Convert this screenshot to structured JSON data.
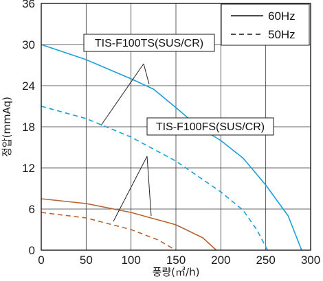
{
  "chart_data": {
    "type": "line",
    "xlabel": "풍량(㎥/h)",
    "ylabel": "정압(mmAq)",
    "xlim": [
      0,
      300
    ],
    "ylim": [
      0,
      36
    ],
    "x_ticks": [
      "0",
      "50",
      "100",
      "150",
      "200",
      "250",
      "300"
    ],
    "y_ticks": [
      "0",
      "6",
      "12",
      "18",
      "24",
      "30",
      "36"
    ],
    "grid": true,
    "legend": {
      "placement": "top-right",
      "entries": [
        {
          "label": "60Hz",
          "style": "solid"
        },
        {
          "label": "50Hz",
          "style": "dashed"
        }
      ]
    },
    "annotations": [
      {
        "text": "TIS-F100TS(SUS/CR)",
        "points_to": [
          "TIS-F100TS 60Hz",
          "TIS-F100TS 50Hz"
        ]
      },
      {
        "text": "TIS-F100FS(SUS/CR)",
        "points_to": [
          "TIS-F100FS 60Hz",
          "TIS-F100FS 50Hz"
        ]
      }
    ],
    "series": [
      {
        "model": "TIS-F100TS(SUS/CR)",
        "freq": "60Hz",
        "color": "#1a9fd8",
        "dash": false,
        "points": [
          [
            0,
            30
          ],
          [
            50,
            27.8
          ],
          [
            100,
            25
          ],
          [
            125,
            23.5
          ],
          [
            150,
            20.8
          ],
          [
            175,
            18
          ],
          [
            200,
            16
          ],
          [
            225,
            13.4
          ],
          [
            250,
            9.5
          ],
          [
            275,
            5
          ],
          [
            290,
            0
          ]
        ]
      },
      {
        "model": "TIS-F100TS(SUS/CR)",
        "freq": "50Hz",
        "color": "#1a9fd8",
        "dash": true,
        "points": [
          [
            0,
            21
          ],
          [
            50,
            19.2
          ],
          [
            100,
            16.5
          ],
          [
            150,
            13
          ],
          [
            200,
            8.5
          ],
          [
            225,
            5.8
          ],
          [
            240,
            3
          ],
          [
            252,
            0
          ]
        ]
      },
      {
        "model": "TIS-F100FS(SUS/CR)",
        "freq": "60Hz",
        "color": "#b8632f",
        "dash": false,
        "points": [
          [
            0,
            7.5
          ],
          [
            50,
            6.8
          ],
          [
            100,
            5.5
          ],
          [
            150,
            3.7
          ],
          [
            180,
            1.8
          ],
          [
            195,
            0
          ]
        ]
      },
      {
        "model": "TIS-F100FS(SUS/CR)",
        "freq": "50Hz",
        "color": "#b8632f",
        "dash": true,
        "points": [
          [
            0,
            5.5
          ],
          [
            50,
            4.7
          ],
          [
            100,
            3
          ],
          [
            130,
            1.5
          ],
          [
            150,
            0
          ]
        ]
      }
    ]
  }
}
